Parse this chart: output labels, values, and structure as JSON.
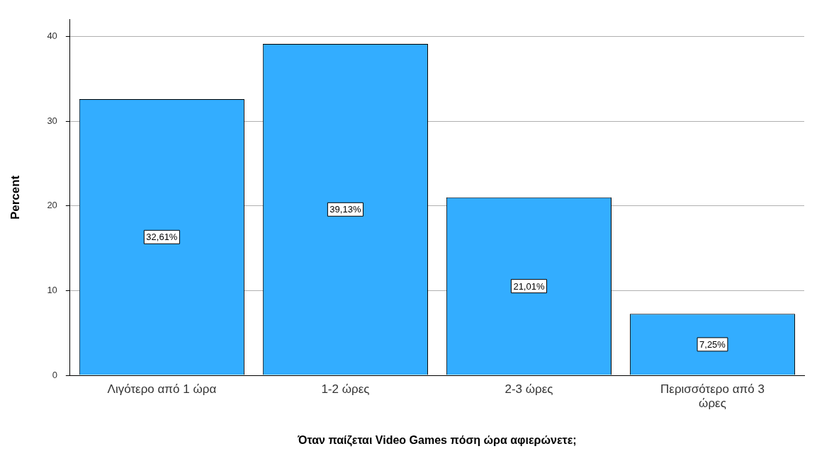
{
  "chart_data": {
    "type": "bar",
    "xlabel": "Όταν παίζεται Video Games πόση ώρα αφιερώνετε;",
    "ylabel": "Percent",
    "categories": [
      "Λιγότερο από 1 ώρα",
      "1-2 ώρες",
      "2-3 ώρες",
      "Περισσότερο από 3 ώρες"
    ],
    "values": [
      32.61,
      39.13,
      21.01,
      7.25
    ],
    "value_labels": [
      "32,61%",
      "39,13%",
      "21,01%",
      "7,25%"
    ],
    "color": "#33adff",
    "ylim": [
      0,
      42
    ],
    "yticks": [
      0,
      10,
      20,
      30,
      40
    ],
    "grid": "y",
    "legend": false
  }
}
